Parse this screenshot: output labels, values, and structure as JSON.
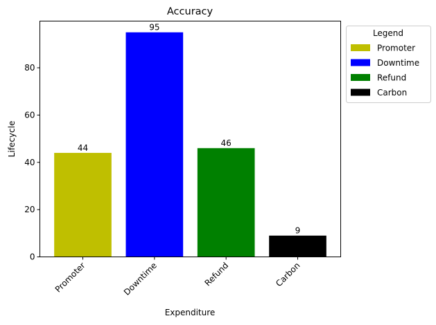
{
  "chart_data": {
    "type": "bar",
    "title": "Accuracy",
    "xlabel": "Expenditure",
    "ylabel": "Lifecycle",
    "categories": [
      "Promoter",
      "Downtime",
      "Refund",
      "Carbon"
    ],
    "values": [
      44,
      95,
      46,
      9
    ],
    "colors": [
      "#bfbf00",
      "#0000ff",
      "#008000",
      "#000000"
    ],
    "ylim": [
      0,
      99.75
    ],
    "yticks": [
      0,
      20,
      40,
      60,
      80
    ],
    "grid": false,
    "legend": {
      "title": "Legend",
      "placement": "outside-top-right",
      "entries": [
        "Promoter",
        "Downtime",
        "Refund",
        "Carbon"
      ]
    }
  }
}
